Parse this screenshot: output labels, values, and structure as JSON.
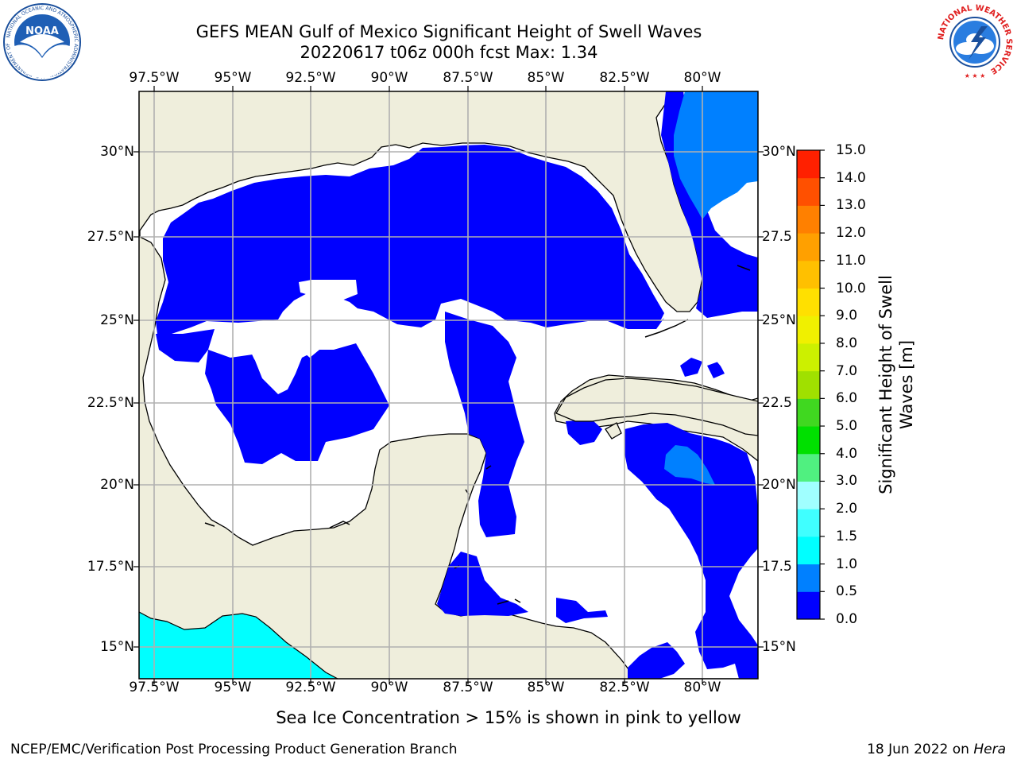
{
  "header": {
    "title_line1": "GEFS MEAN Gulf of Mexico Significant Height of Swell Waves",
    "title_line2": "20220617 t06z 000h fcst   Max: 1.34",
    "left_logo_text": "NOAA",
    "left_logo_ring": "NATIONAL OCEANIC AND ATMOSPHERIC ADMINISTRATION · U.S. DEPARTMENT OF COMMERCE",
    "right_logo_ring": "NATIONAL WEATHER SERVICE"
  },
  "map": {
    "lon_labels": [
      "97.5°W",
      "95°W",
      "92.5°W",
      "90°W",
      "87.5°W",
      "85°W",
      "82.5°W",
      "80°W"
    ],
    "lat_labels_left": [
      "30°N",
      "27.5°N",
      "25°N",
      "22.5°N",
      "20°N",
      "17.5°N",
      "15°N"
    ],
    "lat_labels_right": [
      "30°N",
      "27.5",
      "25°N",
      "22.5",
      "20°N",
      "17.5",
      "15°N"
    ],
    "colors": {
      "land": "#efeedc",
      "ocean_bin_0_0_5": "#0000ff",
      "ocean_bin_0_5_1_0": "#0080ff",
      "ocean_bin_1_0_1_5": "#00ffff",
      "grid": "#b0b0b0"
    }
  },
  "colorbar": {
    "title": "Significant Height of Swell Waves [m]",
    "title_line1": "Significant Height of Swell",
    "title_line2": "Waves [m]",
    "tick_labels": [
      "0.0",
      "0.5",
      "1.0",
      "1.5",
      "2.0",
      "3.0",
      "4.0",
      "5.0",
      "6.0",
      "7.0",
      "8.0",
      "9.0",
      "10.0",
      "11.0",
      "12.0",
      "13.0",
      "14.0",
      "15.0"
    ],
    "colors": [
      "#0000ff",
      "#0080ff",
      "#00ffff",
      "#40ffff",
      "#a0ffff",
      "#50f080",
      "#00e000",
      "#40d820",
      "#a0e000",
      "#ccf000",
      "#f0f000",
      "#ffe000",
      "#ffc000",
      "#ffa000",
      "#ff8000",
      "#ff5000",
      "#ff2000"
    ]
  },
  "footer": {
    "ice_note": "Sea Ice Concentration > 15% is shown in pink to yellow",
    "branch": "NCEP/EMC/Verification Post Processing Product Generation Branch",
    "date_prefix": "18 Jun 2022 on ",
    "machine": "Hera"
  }
}
